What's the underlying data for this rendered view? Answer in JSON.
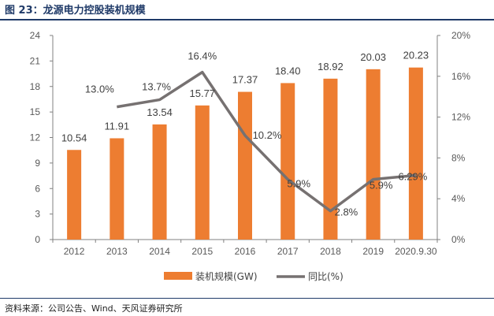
{
  "figure": {
    "title": "图 23：龙源电力控股装机规模",
    "source": "资料来源：公司公告、Wind、天风证券研究所"
  },
  "colors": {
    "bar": "#ED7D31",
    "line": "#767171",
    "axis": "#808080",
    "title": "#1f3a68"
  },
  "chart_data": {
    "type": "bar",
    "categories": [
      "2012",
      "2013",
      "2014",
      "2015",
      "2016",
      "2017",
      "2018",
      "2019",
      "2020.9.30"
    ],
    "series": [
      {
        "name": "装机规模(GW)",
        "type": "bar",
        "axis": "left",
        "values": [
          10.54,
          11.91,
          13.54,
          15.77,
          17.37,
          18.4,
          18.92,
          20.03,
          20.23
        ],
        "labels": [
          "10.54",
          "11.91",
          "13.54",
          "15.77",
          "17.37",
          "18.40",
          "18.92",
          "20.03",
          "20.23"
        ]
      },
      {
        "name": "同比(%)",
        "type": "line",
        "axis": "right",
        "values": [
          null,
          13.0,
          13.7,
          16.4,
          10.2,
          5.9,
          2.8,
          5.9,
          6.29
        ],
        "labels": [
          "",
          "13.0%",
          "13.7%",
          "16.4%",
          "10.2%",
          "5.9%",
          "2.8%",
          "5.9%",
          "6.29%"
        ]
      }
    ],
    "y_left": {
      "min": 0,
      "max": 24,
      "ticks": [
        "0",
        "3",
        "6",
        "9",
        "12",
        "15",
        "18",
        "21",
        "24"
      ]
    },
    "y_right": {
      "min": 0,
      "max": 20,
      "ticks": [
        "0%",
        "4%",
        "8%",
        "12%",
        "16%",
        "20%"
      ]
    },
    "legend": {
      "position": "bottom",
      "items": [
        "装机规模(GW)",
        "同比(%)"
      ]
    },
    "grid": false
  }
}
